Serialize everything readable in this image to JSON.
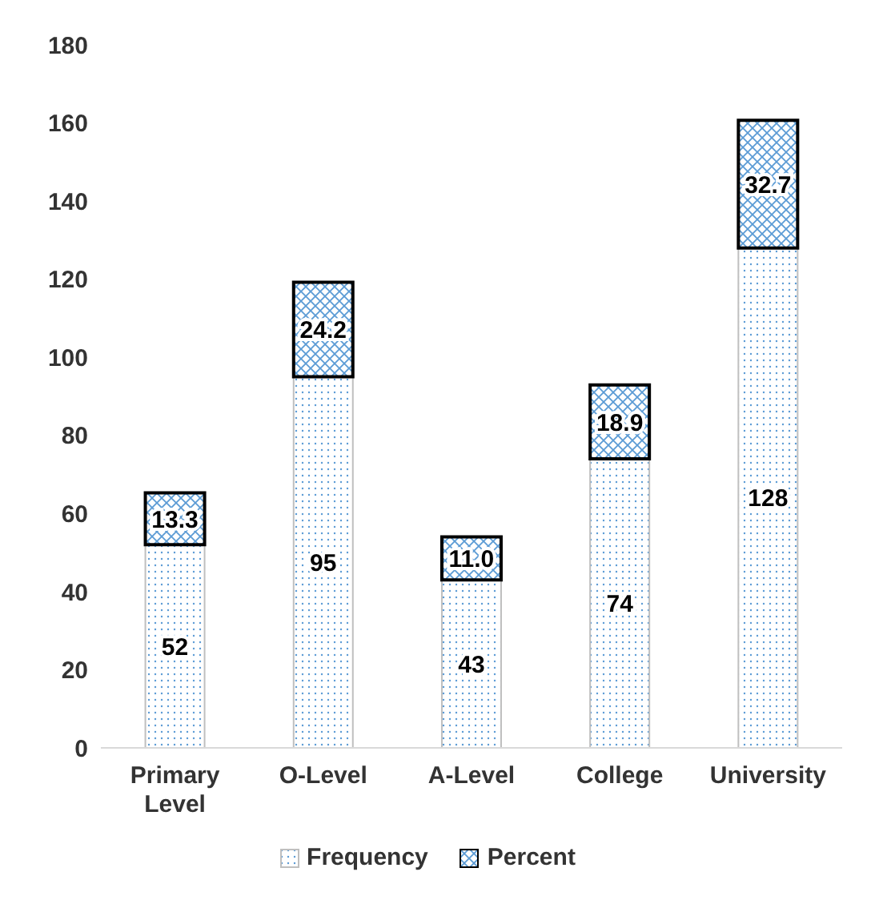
{
  "chart_data": {
    "type": "bar",
    "stacked": true,
    "categories": [
      "Primary Level",
      "O-Level",
      "A-Level",
      "College",
      "University"
    ],
    "series": [
      {
        "name": "Frequency",
        "color": "#bfbfbf",
        "values": [
          52,
          95,
          43,
          74,
          128
        ],
        "value_labels": [
          "52",
          "95",
          "43",
          "74",
          "128"
        ]
      },
      {
        "name": "Percent",
        "color": "#000000",
        "values": [
          13.3,
          24.2,
          11.0,
          18.9,
          32.7
        ],
        "value_labels": [
          "13.3",
          "24.2",
          "11.0",
          "18.9",
          "32.7"
        ]
      }
    ],
    "ylim": [
      0,
      180
    ],
    "yticks": [
      0,
      20,
      40,
      60,
      80,
      100,
      120,
      140,
      160,
      180
    ],
    "grid": false,
    "legend": "bottom"
  }
}
